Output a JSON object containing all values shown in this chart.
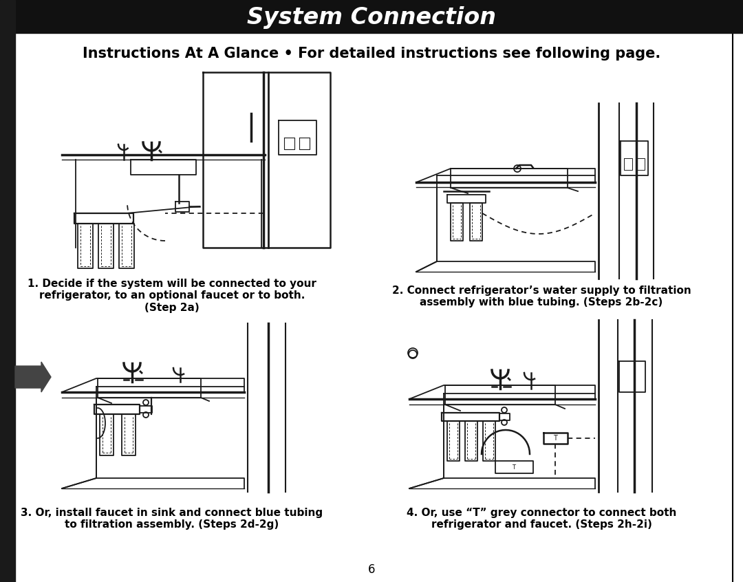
{
  "header_text": "System Connection",
  "header_bg": "#111111",
  "header_text_color": "#ffffff",
  "subtitle": "Instructions At A Glance • For detailed instructions see following page.",
  "subtitle_color": "#000000",
  "background_color": "#ffffff",
  "page_number": "6",
  "captions": [
    "1. Decide if the system will be connected to your\nrefrigerator, to an optional faucet or to both.\n(Step 2a)",
    "2. Connect refrigerator’s water supply to filtration\nassembly with blue tubing. (Steps 2b-2c)",
    "3. Or, install faucet in sink and connect blue tubing\nto filtration assembly. (Steps 2d-2g)",
    "4. Or, use “T” grey connector to connect both\nrefrigerator and faucet. (Steps 2h-2i)"
  ],
  "caption_color": "#000000",
  "lw_thin": 1.0,
  "lw_med": 1.5,
  "lw_thick": 2.5
}
